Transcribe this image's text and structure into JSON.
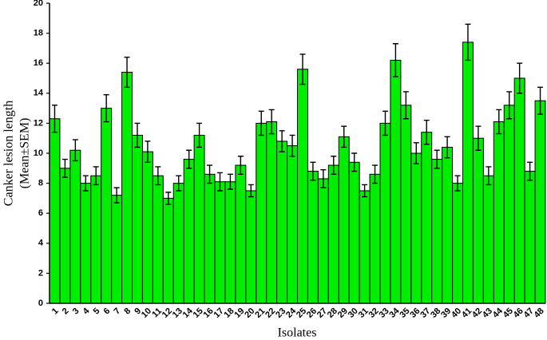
{
  "chart_data": {
    "type": "bar",
    "xlabel": "Isolates",
    "ylabel": [
      "Canker lesion length",
      "(Mean±SEM)"
    ],
    "categories": [
      "1",
      "2",
      "3",
      "4",
      "5",
      "6",
      "7",
      "8",
      "9",
      "10",
      "11",
      "12",
      "13",
      "14",
      "15",
      "16",
      "17",
      "18",
      "19",
      "20",
      "21",
      "22",
      "23",
      "24",
      "25",
      "26",
      "27",
      "28",
      "29",
      "30",
      "31",
      "32",
      "33",
      "34",
      "35",
      "36",
      "37",
      "38",
      "39",
      "40",
      "41",
      "42",
      "43",
      "44",
      "45",
      "46",
      "47",
      "48"
    ],
    "values": [
      12.3,
      9.0,
      10.2,
      8.0,
      8.5,
      13.0,
      7.2,
      15.4,
      11.2,
      10.1,
      8.5,
      7.0,
      8.0,
      9.6,
      11.2,
      8.6,
      8.1,
      8.1,
      9.2,
      7.5,
      12.0,
      12.1,
      10.8,
      10.5,
      15.6,
      8.8,
      8.3,
      9.2,
      11.1,
      9.4,
      7.5,
      8.6,
      12.0,
      16.2,
      13.2,
      10.0,
      11.4,
      9.6,
      10.4,
      8.0,
      17.4,
      11.0,
      8.5,
      12.1,
      13.2,
      15.0,
      8.8,
      13.5
    ],
    "errors": [
      0.9,
      0.6,
      0.7,
      0.5,
      0.6,
      0.9,
      0.5,
      1.0,
      0.8,
      0.7,
      0.6,
      0.4,
      0.5,
      0.6,
      0.8,
      0.6,
      0.6,
      0.5,
      0.6,
      0.4,
      0.8,
      0.8,
      0.7,
      0.7,
      1.0,
      0.6,
      0.6,
      0.6,
      0.7,
      0.6,
      0.4,
      0.6,
      0.8,
      1.1,
      0.9,
      0.7,
      0.8,
      0.6,
      0.7,
      0.5,
      1.2,
      0.8,
      0.6,
      0.8,
      0.9,
      1.0,
      0.6,
      0.9
    ],
    "color": "#00ee00",
    "ylim": [
      0,
      20
    ],
    "yticks": [
      0,
      2,
      4,
      6,
      8,
      10,
      12,
      14,
      16,
      18,
      20
    ],
    "grid": false
  }
}
